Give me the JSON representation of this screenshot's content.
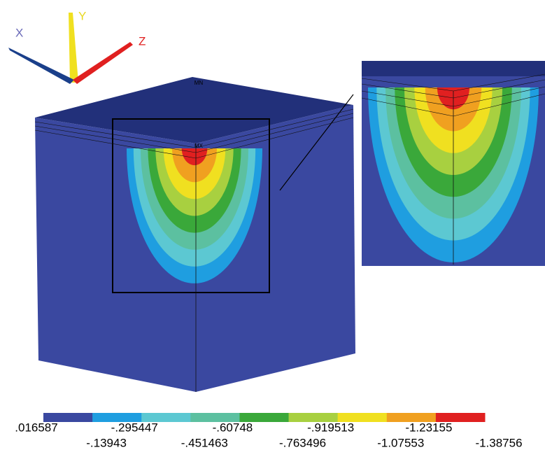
{
  "axes": {
    "x": "X",
    "y": "Y",
    "z": "Z"
  },
  "markers": {
    "min": "MN",
    "max": "MX"
  },
  "legend": {
    "colors": [
      "#3a48a0",
      "#1f9ee0",
      "#5cc8d2",
      "#5cc0a0",
      "#3aa83a",
      "#a8d040",
      "#f0e020",
      "#f0a020",
      "#e02020"
    ],
    "labels": [
      ".016587",
      "-.13943",
      "-.295447",
      "-.451463",
      "-.60748",
      "-.763496",
      "-.919513",
      "-1.07553",
      "-1.23155",
      "-1.38756"
    ]
  }
}
